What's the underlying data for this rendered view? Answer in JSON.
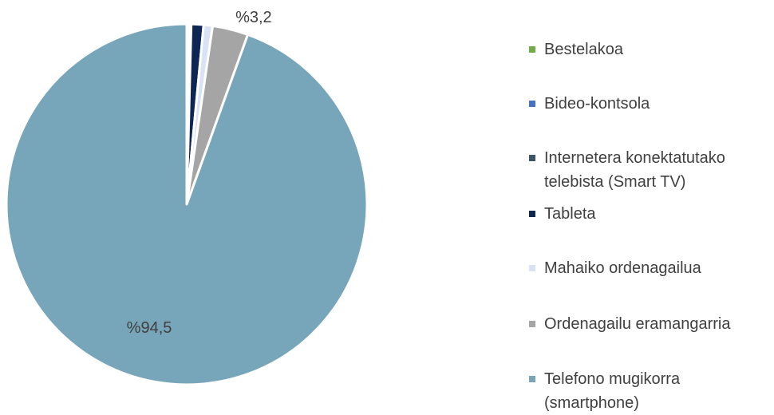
{
  "chart_data": {
    "type": "pie",
    "categories": [
      "Bestelakoa",
      "Bideo-kontsola",
      "Internetera konektatutako telebista (Smart TV)",
      "Tableta",
      "Mahaiko ordenagailua",
      "Ordenagailu eramangarria",
      "Telefono mugikorra (smartphone)"
    ],
    "values": [
      0.1,
      0.1,
      0.2,
      1.1,
      0.8,
      3.2,
      94.5
    ],
    "value_labels": [
      null,
      null,
      null,
      null,
      null,
      "%3,2",
      "%94,5"
    ],
    "colors": [
      "#70ad47",
      "#4472c4",
      "#3a5566",
      "#0e2654",
      "#dae3f3",
      "#a5a5a5",
      "#77a5b9"
    ],
    "legend": "right"
  }
}
